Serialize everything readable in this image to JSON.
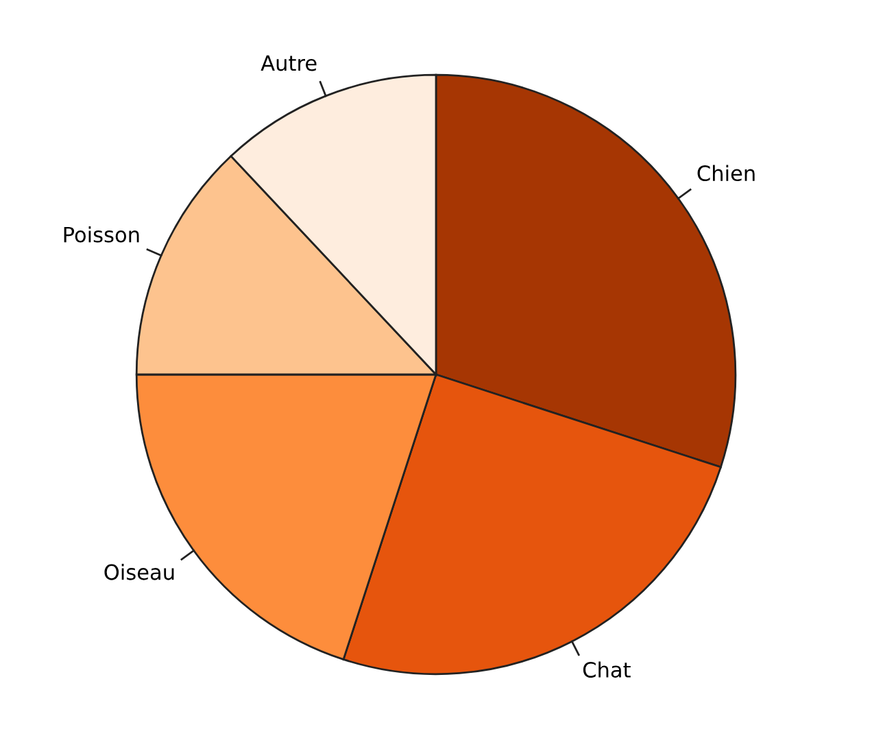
{
  "chart_data": {
    "type": "pie",
    "categories": [
      "Chien",
      "Chat",
      "Oiseau",
      "Poisson",
      "Autre"
    ],
    "values": [
      30,
      25,
      20,
      13,
      12
    ],
    "colors": [
      "#a63603",
      "#e6550d",
      "#fd8d3c",
      "#fdc38e",
      "#feedde"
    ]
  }
}
